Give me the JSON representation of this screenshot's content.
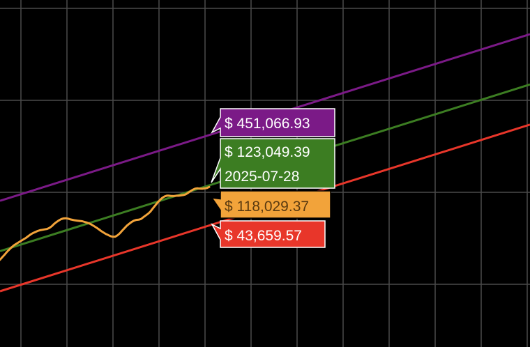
{
  "chart_data": {
    "type": "line",
    "title": "",
    "xlabel": "",
    "ylabel": "",
    "y_scale": "log",
    "grid": true,
    "background": "#000000",
    "series": [
      {
        "role": "upper-band",
        "color": "#7b1a87",
        "label": "$ 451,066.93",
        "value": 451066.93
      },
      {
        "role": "fair-value",
        "color": "#3c7d22",
        "label": "$ 123,049.39",
        "value": 123049.39,
        "date_label": "2025-07-28"
      },
      {
        "role": "lower-band",
        "color": "#e8362a",
        "label": "$ 43,659.57",
        "value": 43659.57
      },
      {
        "role": "price",
        "color": "#f2a33a",
        "label": "$ 118,029.37",
        "value": 118029.37,
        "fair_ratio": [
          0.8,
          0.84,
          0.88,
          0.93,
          0.97,
          1.01,
          1.04,
          1.06,
          1.08,
          1.1,
          1.12,
          1.14,
          1.17,
          1.2,
          1.22,
          1.23,
          1.24,
          1.24,
          1.23,
          1.22,
          1.21,
          1.22,
          1.25,
          1.3,
          1.34,
          1.37,
          1.39,
          1.39,
          1.37,
          1.33,
          1.28,
          1.24,
          1.2,
          1.17,
          1.14,
          1.11,
          1.07,
          1.03,
          0.99,
          0.94,
          0.89,
          0.84,
          0.79,
          0.74,
          0.7,
          0.66,
          0.63,
          0.6,
          0.58,
          0.57,
          0.58,
          0.6,
          0.63,
          0.66,
          0.69,
          0.71,
          0.73,
          0.74,
          0.74,
          0.73,
          0.73,
          0.75,
          0.77,
          0.79,
          0.82,
          0.87,
          0.92,
          0.97,
          1.02,
          1.06,
          1.08,
          1.08,
          1.06,
          1.03,
          1.01,
          1.0,
          0.98,
          0.97,
          0.96,
          0.96,
          0.98,
          1.0,
          1.02,
          1.03,
          1.02,
          0.99,
          0.97,
          0.96,
          0.95,
          0.96
        ]
      }
    ]
  }
}
